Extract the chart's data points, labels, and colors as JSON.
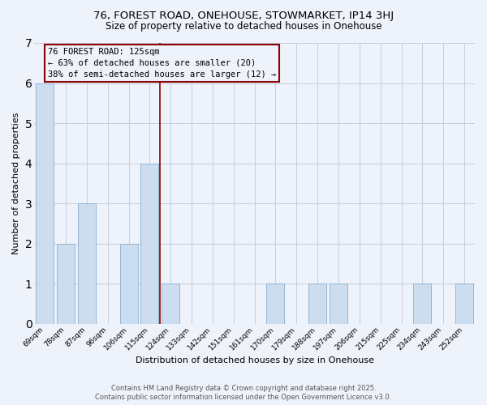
{
  "title": "76, FOREST ROAD, ONEHOUSE, STOWMARKET, IP14 3HJ",
  "subtitle": "Size of property relative to detached houses in Onehouse",
  "xlabel": "Distribution of detached houses by size in Onehouse",
  "ylabel": "Number of detached properties",
  "categories": [
    "69sqm",
    "78sqm",
    "87sqm",
    "96sqm",
    "106sqm",
    "115sqm",
    "124sqm",
    "133sqm",
    "142sqm",
    "151sqm",
    "161sqm",
    "170sqm",
    "179sqm",
    "188sqm",
    "197sqm",
    "206sqm",
    "215sqm",
    "225sqm",
    "234sqm",
    "243sqm",
    "252sqm"
  ],
  "values": [
    6,
    2,
    3,
    0,
    2,
    4,
    1,
    0,
    0,
    0,
    0,
    1,
    0,
    1,
    1,
    0,
    0,
    0,
    1,
    0,
    1
  ],
  "bar_color": "#ccddf0",
  "bar_edge_color": "#8ab0d0",
  "highlight_line_color": "#8b0000",
  "vline_x": 5.5,
  "annotation_line1": "76 FOREST ROAD: 125sqm",
  "annotation_line2": "← 63% of detached houses are smaller (20)",
  "annotation_line3": "38% of semi-detached houses are larger (12) →",
  "annotation_box_color": "#8b0000",
  "ylim": [
    0,
    7
  ],
  "yticks": [
    0,
    1,
    2,
    3,
    4,
    5,
    6,
    7
  ],
  "footer1": "Contains HM Land Registry data © Crown copyright and database right 2025.",
  "footer2": "Contains public sector information licensed under the Open Government Licence v3.0.",
  "bg_color": "#eef2fa",
  "grid_color": "#c5cede",
  "title_fontsize": 9.5,
  "subtitle_fontsize": 8.5,
  "axis_label_fontsize": 8,
  "tick_fontsize": 6.5,
  "footer_fontsize": 6,
  "annotation_fontsize": 7.5
}
